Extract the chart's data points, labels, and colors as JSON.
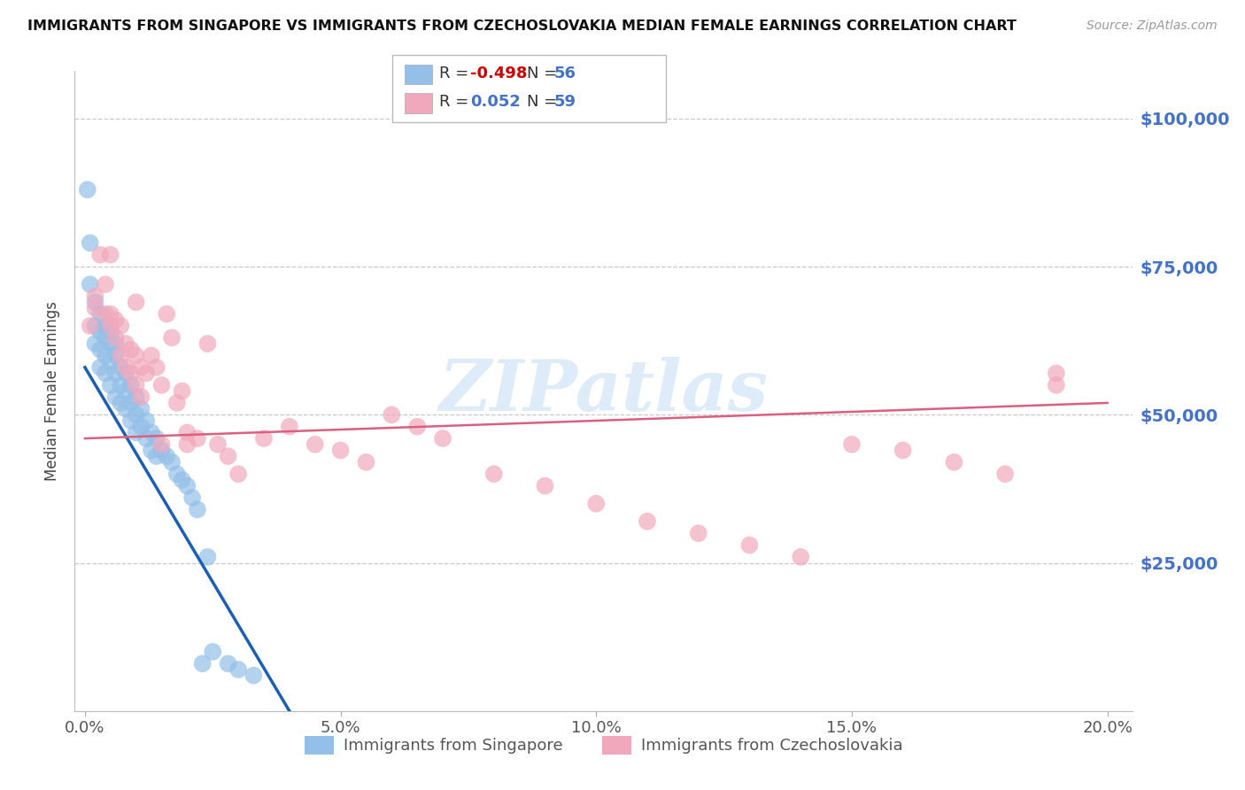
{
  "title": "IMMIGRANTS FROM SINGAPORE VS IMMIGRANTS FROM CZECHOSLOVAKIA MEDIAN FEMALE EARNINGS CORRELATION CHART",
  "source": "Source: ZipAtlas.com",
  "ylabel": "Median Female Earnings",
  "xlabel_ticks": [
    "0.0%",
    "5.0%",
    "10.0%",
    "15.0%",
    "20.0%"
  ],
  "xlabel_vals": [
    0.0,
    0.05,
    0.1,
    0.15,
    0.2
  ],
  "ytick_labels": [
    "$25,000",
    "$50,000",
    "$75,000",
    "$100,000"
  ],
  "ytick_vals": [
    25000,
    50000,
    75000,
    100000
  ],
  "ylim": [
    0,
    108000
  ],
  "xlim": [
    -0.002,
    0.205
  ],
  "singapore_color": "#93bfe8",
  "czechoslovakia_color": "#f2a8bc",
  "singapore_line_color": "#1a5fb4",
  "czechoslovakia_line_color": "#d96080",
  "legend_label_singapore": "Immigrants from Singapore",
  "legend_label_czechoslovakia": "Immigrants from Czechoslovakia",
  "watermark": "ZIPatlas",
  "singapore_x": [
    0.0005,
    0.001,
    0.001,
    0.002,
    0.002,
    0.002,
    0.003,
    0.003,
    0.003,
    0.003,
    0.004,
    0.004,
    0.004,
    0.004,
    0.005,
    0.005,
    0.005,
    0.005,
    0.006,
    0.006,
    0.006,
    0.006,
    0.007,
    0.007,
    0.007,
    0.008,
    0.008,
    0.008,
    0.009,
    0.009,
    0.009,
    0.01,
    0.01,
    0.01,
    0.011,
    0.011,
    0.012,
    0.012,
    0.013,
    0.013,
    0.014,
    0.014,
    0.015,
    0.016,
    0.017,
    0.018,
    0.019,
    0.02,
    0.021,
    0.022,
    0.023,
    0.024,
    0.025,
    0.028,
    0.03,
    0.033
  ],
  "singapore_y": [
    88000,
    79000,
    72000,
    65000,
    62000,
    69000,
    64000,
    61000,
    67000,
    58000,
    63000,
    60000,
    65000,
    57000,
    62000,
    59000,
    55000,
    64000,
    60000,
    57000,
    53000,
    62000,
    58000,
    55000,
    52000,
    57000,
    54000,
    51000,
    55000,
    52000,
    49000,
    53000,
    50000,
    47000,
    51000,
    48000,
    49000,
    46000,
    47000,
    44000,
    46000,
    43000,
    44000,
    43000,
    42000,
    40000,
    39000,
    38000,
    36000,
    34000,
    8000,
    26000,
    10000,
    8000,
    7000,
    6000
  ],
  "czechoslovakia_x": [
    0.001,
    0.002,
    0.002,
    0.003,
    0.004,
    0.004,
    0.005,
    0.005,
    0.006,
    0.006,
    0.007,
    0.007,
    0.008,
    0.008,
    0.009,
    0.009,
    0.01,
    0.01,
    0.011,
    0.011,
    0.012,
    0.013,
    0.014,
    0.015,
    0.016,
    0.017,
    0.018,
    0.019,
    0.02,
    0.022,
    0.024,
    0.026,
    0.028,
    0.03,
    0.035,
    0.04,
    0.045,
    0.05,
    0.055,
    0.06,
    0.065,
    0.07,
    0.08,
    0.09,
    0.1,
    0.11,
    0.12,
    0.13,
    0.14,
    0.15,
    0.16,
    0.17,
    0.18,
    0.19,
    0.005,
    0.01,
    0.015,
    0.02,
    0.19
  ],
  "czechoslovakia_y": [
    65000,
    70000,
    68000,
    77000,
    72000,
    67000,
    65000,
    67000,
    63000,
    66000,
    60000,
    65000,
    62000,
    58000,
    61000,
    57000,
    60000,
    55000,
    58000,
    53000,
    57000,
    60000,
    58000,
    55000,
    67000,
    63000,
    52000,
    54000,
    47000,
    46000,
    62000,
    45000,
    43000,
    40000,
    46000,
    48000,
    45000,
    44000,
    42000,
    50000,
    48000,
    46000,
    40000,
    38000,
    35000,
    32000,
    30000,
    28000,
    26000,
    45000,
    44000,
    42000,
    40000,
    55000,
    77000,
    69000,
    45000,
    45000,
    57000
  ],
  "sg_line_x0": 0.0,
  "sg_line_x1": 0.04,
  "sg_line_y0": 58000,
  "sg_line_y1": 0,
  "cz_line_x0": 0.0,
  "cz_line_x1": 0.2,
  "cz_line_y0": 46000,
  "cz_line_y1": 52000
}
